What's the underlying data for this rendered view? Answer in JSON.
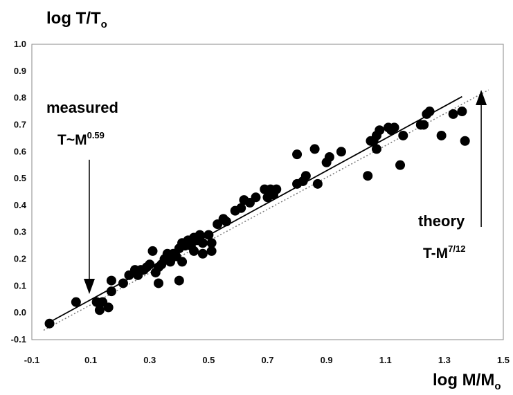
{
  "chart_data": {
    "type": "scatter",
    "xlabel": "log M/M",
    "xlabel_sub": "o",
    "ylabel": "log T/T",
    "ylabel_sub": "o",
    "xlim": [
      -0.1,
      1.5
    ],
    "ylim": [
      -0.1,
      1.0
    ],
    "xticks": [
      "-0.1",
      "0.1",
      "0.3",
      "0.5",
      "0.7",
      "0.9",
      "1.1",
      "1.3",
      "1.5"
    ],
    "yticks": [
      "1.0",
      "0.9",
      "0.8",
      "0.7",
      "0.6",
      "0.5",
      "0.4",
      "0.3",
      "0.2",
      "0.1",
      "0.0",
      "-0.1"
    ],
    "series": [
      {
        "points": [
          [
            -0.04,
            -0.04
          ],
          [
            0.05,
            0.04
          ],
          [
            0.12,
            0.04
          ],
          [
            0.13,
            0.01
          ],
          [
            0.14,
            0.04
          ],
          [
            0.16,
            0.02
          ],
          [
            0.17,
            0.08
          ],
          [
            0.17,
            0.12
          ],
          [
            0.21,
            0.11
          ],
          [
            0.23,
            0.14
          ],
          [
            0.25,
            0.16
          ],
          [
            0.26,
            0.14
          ],
          [
            0.27,
            0.16
          ],
          [
            0.28,
            0.16
          ],
          [
            0.29,
            0.17
          ],
          [
            0.3,
            0.18
          ],
          [
            0.31,
            0.23
          ],
          [
            0.32,
            0.15
          ],
          [
            0.33,
            0.11
          ],
          [
            0.33,
            0.17
          ],
          [
            0.34,
            0.18
          ],
          [
            0.35,
            0.2
          ],
          [
            0.36,
            0.22
          ],
          [
            0.37,
            0.19
          ],
          [
            0.38,
            0.21
          ],
          [
            0.38,
            0.22
          ],
          [
            0.39,
            0.21
          ],
          [
            0.4,
            0.12
          ],
          [
            0.4,
            0.24
          ],
          [
            0.41,
            0.19
          ],
          [
            0.41,
            0.26
          ],
          [
            0.42,
            0.25
          ],
          [
            0.43,
            0.27
          ],
          [
            0.44,
            0.25
          ],
          [
            0.45,
            0.23
          ],
          [
            0.45,
            0.28
          ],
          [
            0.46,
            0.27
          ],
          [
            0.47,
            0.29
          ],
          [
            0.48,
            0.26
          ],
          [
            0.48,
            0.22
          ],
          [
            0.5,
            0.29
          ],
          [
            0.51,
            0.23
          ],
          [
            0.51,
            0.26
          ],
          [
            0.53,
            0.33
          ],
          [
            0.55,
            0.35
          ],
          [
            0.56,
            0.34
          ],
          [
            0.59,
            0.38
          ],
          [
            0.61,
            0.39
          ],
          [
            0.62,
            0.42
          ],
          [
            0.64,
            0.41
          ],
          [
            0.66,
            0.43
          ],
          [
            0.69,
            0.46
          ],
          [
            0.7,
            0.43
          ],
          [
            0.71,
            0.46
          ],
          [
            0.72,
            0.44
          ],
          [
            0.73,
            0.46
          ],
          [
            0.8,
            0.48
          ],
          [
            0.8,
            0.59
          ],
          [
            0.82,
            0.49
          ],
          [
            0.83,
            0.51
          ],
          [
            0.86,
            0.61
          ],
          [
            0.87,
            0.48
          ],
          [
            0.9,
            0.56
          ],
          [
            0.91,
            0.58
          ],
          [
            0.95,
            0.6
          ],
          [
            1.04,
            0.51
          ],
          [
            1.05,
            0.64
          ],
          [
            1.06,
            0.64
          ],
          [
            1.07,
            0.66
          ],
          [
            1.07,
            0.61
          ],
          [
            1.08,
            0.68
          ],
          [
            1.11,
            0.69
          ],
          [
            1.12,
            0.68
          ],
          [
            1.13,
            0.69
          ],
          [
            1.15,
            0.55
          ],
          [
            1.16,
            0.66
          ],
          [
            1.22,
            0.7
          ],
          [
            1.23,
            0.7
          ],
          [
            1.24,
            0.74
          ],
          [
            1.25,
            0.75
          ],
          [
            1.29,
            0.66
          ],
          [
            1.33,
            0.74
          ],
          [
            1.36,
            0.75
          ],
          [
            1.37,
            0.64
          ]
        ]
      }
    ],
    "fit_lines": [
      {
        "style": "solid",
        "x": [
          -0.04,
          1.36
        ],
        "y": [
          -0.035,
          0.805
        ]
      },
      {
        "style": "dotted",
        "x": [
          -0.06,
          1.45
        ],
        "y": [
          -0.065,
          0.83
        ]
      }
    ],
    "annotations": [
      {
        "id": "measured",
        "label": "measured",
        "formula_base": "T~M",
        "formula_exp": "0.59",
        "arrow": {
          "x": 0.095,
          "y_from": 0.57,
          "y_to": 0.07
        }
      },
      {
        "id": "theory",
        "label": "theory",
        "formula_base": "T-M",
        "formula_exp": "7/12",
        "arrow": {
          "x": 1.425,
          "y_from": 0.32,
          "y_to": 0.83
        }
      }
    ],
    "grid": false
  }
}
